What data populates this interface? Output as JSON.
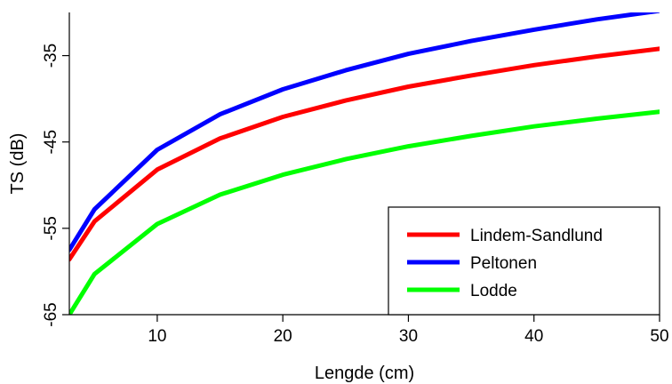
{
  "chart_data": {
    "type": "line",
    "xlabel": "Lengde (cm)",
    "ylabel": "TS (dB)",
    "xlim": [
      3,
      50
    ],
    "ylim": [
      -65,
      -30
    ],
    "x_ticks": [
      10,
      20,
      30,
      40,
      50
    ],
    "y_ticks": [
      -35,
      -45,
      -55,
      -65
    ],
    "grid": false,
    "legend_position": "bottom-right",
    "x": [
      3,
      5,
      10,
      15,
      20,
      25,
      30,
      35,
      40,
      45,
      50
    ],
    "series": [
      {
        "name": "Lindem-Sandlund",
        "color": "#ff0000",
        "values": [
          -58.6,
          -54.2,
          -48.2,
          -44.6,
          -42.1,
          -40.2,
          -38.6,
          -37.3,
          -36.1,
          -35.1,
          -34.2
        ]
      },
      {
        "name": "Peltonen",
        "color": "#0000ff",
        "values": [
          -57.5,
          -52.8,
          -45.9,
          -41.8,
          -38.9,
          -36.7,
          -34.8,
          -33.3,
          -32.0,
          -30.8,
          -29.8
        ]
      },
      {
        "name": "Lodde",
        "color": "#00ff00",
        "values": [
          -65.0,
          -60.3,
          -54.5,
          -51.1,
          -48.8,
          -47.0,
          -45.5,
          -44.3,
          -43.2,
          -42.3,
          -41.5
        ]
      }
    ]
  }
}
